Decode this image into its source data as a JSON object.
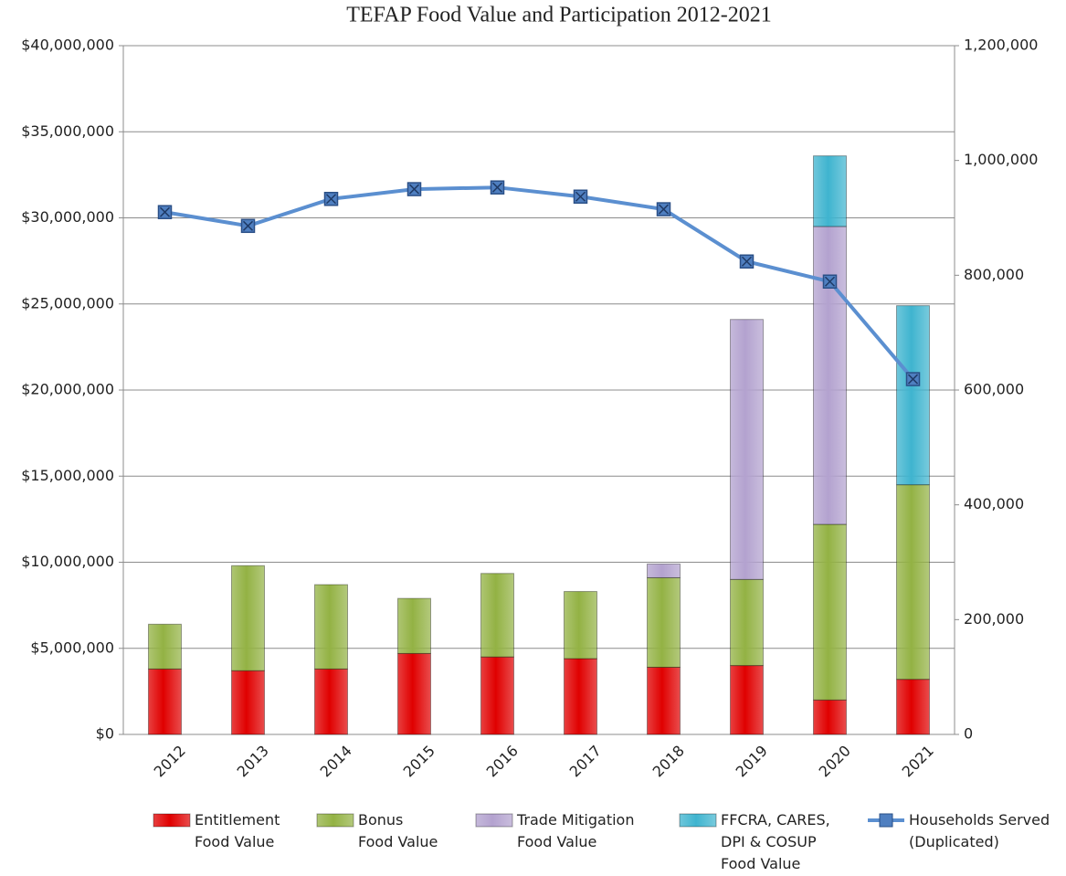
{
  "chart_data": {
    "type": "bar",
    "title": "TEFAP  Food Value and Participation 2012-2021",
    "categories": [
      "2012",
      "2013",
      "2014",
      "2015",
      "2016",
      "2017",
      "2018",
      "2019",
      "2020",
      "2021"
    ],
    "series": [
      {
        "name": "Entitlement\nFood Value",
        "color": "#e00000",
        "type": "bar",
        "values": [
          3800000,
          3700000,
          3800000,
          4700000,
          4500000,
          4400000,
          3900000,
          4000000,
          2000000,
          3200000
        ]
      },
      {
        "name": "Bonus\nFood Value",
        "color": "#93b244",
        "type": "bar",
        "values": [
          2600000,
          6100000,
          4900000,
          3200000,
          4850000,
          3900000,
          5200000,
          5000000,
          10200000,
          11300000
        ]
      },
      {
        "name": "Trade Mitigation\nFood Value",
        "color": "#b3a2cf",
        "type": "bar",
        "values": [
          0,
          0,
          0,
          0,
          0,
          0,
          800000,
          15100000,
          17300000,
          0
        ]
      },
      {
        "name": "FFCRA, CARES,\nDPI & COSUP\nFood Value",
        "color": "#3fb4cf",
        "type": "bar",
        "values": [
          0,
          0,
          0,
          0,
          0,
          0,
          0,
          0,
          4100000,
          10400000
        ]
      },
      {
        "name": "Households Served\n(Duplicated)",
        "color": "#5b8fd0",
        "type": "line",
        "axis": "y2",
        "values": [
          910000,
          886000,
          933000,
          950000,
          953000,
          937000,
          915000,
          824000,
          789000,
          619000
        ]
      }
    ],
    "ylim": [
      0,
      40000000
    ],
    "yticks": [
      {
        "value": 0,
        "label": "$0"
      },
      {
        "value": 5000000,
        "label": "$5,000,000"
      },
      {
        "value": 10000000,
        "label": "$10,000,000"
      },
      {
        "value": 15000000,
        "label": "$15,000,000"
      },
      {
        "value": 20000000,
        "label": "$20,000,000"
      },
      {
        "value": 25000000,
        "label": "$25,000,000"
      },
      {
        "value": 30000000,
        "label": "$30,000,000"
      },
      {
        "value": 35000000,
        "label": "$35,000,000"
      },
      {
        "value": 40000000,
        "label": "$40,000,000"
      }
    ],
    "y2lim": [
      0,
      1200000
    ],
    "y2ticks": [
      0,
      {
        "value": 200000,
        "label": "200,000"
      },
      {
        "value": 400000,
        "label": "400,000"
      },
      {
        "value": 600000,
        "label": "600,000"
      },
      {
        "value": 800000,
        "label": "800,000"
      },
      {
        "value": 1000000,
        "label": "1,000,000"
      },
      {
        "value": 1200000,
        "label": "1,200,000"
      }
    ],
    "grid": true,
    "legend": "bottom"
  }
}
